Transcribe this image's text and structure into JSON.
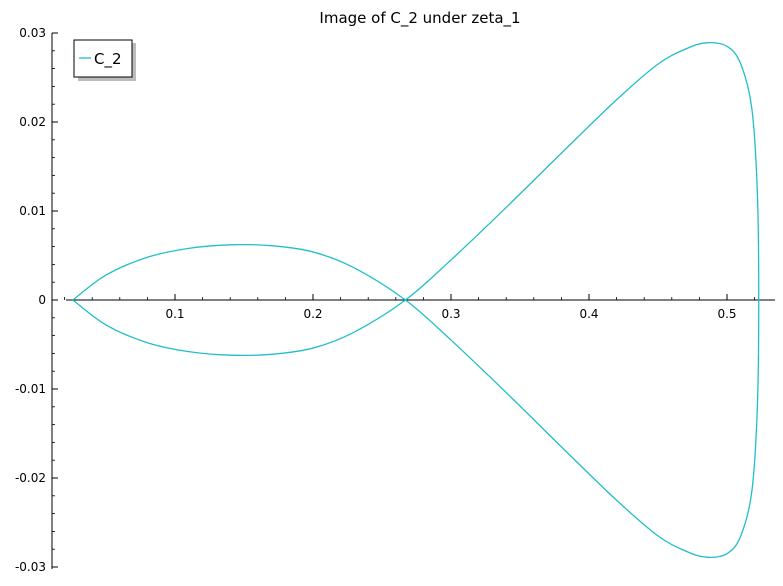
{
  "chart_data": {
    "type": "line",
    "title": "Image of C_2 under zeta_1",
    "xlabel": "",
    "ylabel": "",
    "xlim": [
      0.0,
      0.53
    ],
    "ylim": [
      -0.03,
      0.03
    ],
    "x_ticks": [
      0.1,
      0.2,
      0.3,
      0.4,
      0.5
    ],
    "x_tick_labels": [
      "0.1",
      "0.2",
      "0.3",
      "0.4",
      "0.5"
    ],
    "y_ticks": [
      0.03,
      0.02,
      0.01,
      0,
      -0.01,
      -0.02,
      -0.03
    ],
    "y_tick_labels": [
      "0.03",
      "0.02",
      "0.01",
      "0",
      "-0.01",
      "-0.02",
      "-0.03"
    ],
    "grid": false,
    "legend": {
      "placement": "top-left",
      "entries": [
        "C_2"
      ]
    },
    "series": [
      {
        "name": "C_2",
        "color": "#20bfc7",
        "x": [
          0.026,
          0.05,
          0.08,
          0.11,
          0.14,
          0.17,
          0.2,
          0.23,
          0.267,
          0.3,
          0.34,
          0.38,
          0.42,
          0.45,
          0.47,
          0.485,
          0.5,
          0.51,
          0.518,
          0.522,
          0.523,
          0.522,
          0.518,
          0.51,
          0.5,
          0.485,
          0.47,
          0.45,
          0.42,
          0.38,
          0.34,
          0.3,
          0.267,
          0.23,
          0.2,
          0.17,
          0.14,
          0.11,
          0.08,
          0.05,
          0.026
        ],
        "y": [
          0.0,
          0.0028,
          0.0048,
          0.0058,
          0.0062,
          0.0061,
          0.0054,
          0.0036,
          0.0,
          -0.0045,
          -0.0104,
          -0.0165,
          -0.0225,
          -0.0265,
          -0.0282,
          -0.0289,
          -0.0285,
          -0.0265,
          -0.0215,
          -0.012,
          0.0,
          0.012,
          0.0215,
          0.0265,
          0.0285,
          0.0289,
          0.0282,
          0.0265,
          0.0225,
          0.0165,
          0.0104,
          0.0045,
          0.0,
          -0.0036,
          -0.0054,
          -0.0061,
          -0.0062,
          -0.0058,
          -0.0048,
          -0.0028,
          0.0
        ]
      }
    ]
  }
}
